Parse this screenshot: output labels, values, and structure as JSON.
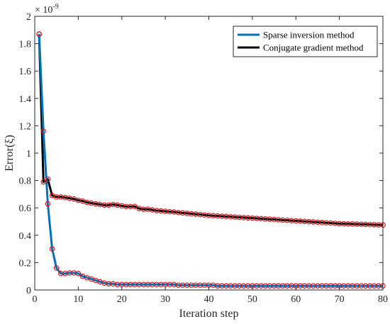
{
  "chart_data": {
    "type": "line",
    "xlabel": "Iteration step",
    "ylabel": "Error(ξ)",
    "y_exponent": "× 10",
    "y_exponent_power": "-9",
    "xlim": [
      0,
      80
    ],
    "ylim": [
      0,
      2
    ],
    "x_ticks": [
      "0",
      "10",
      "20",
      "30",
      "40",
      "50",
      "60",
      "70",
      "80"
    ],
    "y_ticks": [
      "0",
      "0.2",
      "0.4",
      "0.6",
      "0.8",
      "1",
      "1.2",
      "1.4",
      "1.6",
      "1.8",
      "2"
    ],
    "grid": false,
    "legend_position": "top-right",
    "marker_color": "#d7191c",
    "series": [
      {
        "name": "Sparse inversion method",
        "color": "#0072bd",
        "x": [
          1,
          2,
          3,
          4,
          5,
          6,
          7,
          8,
          9,
          10,
          11,
          12,
          13,
          14,
          15,
          16,
          17,
          18,
          19,
          20,
          21,
          22,
          23,
          24,
          25,
          26,
          27,
          28,
          29,
          30,
          31,
          32,
          33,
          34,
          35,
          36,
          37,
          38,
          39,
          40,
          41,
          42,
          43,
          44,
          45,
          46,
          47,
          48,
          49,
          50,
          51,
          52,
          53,
          54,
          55,
          56,
          57,
          58,
          59,
          60,
          61,
          62,
          63,
          64,
          65,
          66,
          67,
          68,
          69,
          70,
          71,
          72,
          73,
          74,
          75,
          76,
          77,
          78,
          79,
          80
        ],
        "values": [
          1.87,
          1.16,
          0.63,
          0.3,
          0.16,
          0.12,
          0.12,
          0.125,
          0.125,
          0.12,
          0.1,
          0.09,
          0.08,
          0.07,
          0.06,
          0.05,
          0.045,
          0.045,
          0.04,
          0.04,
          0.04,
          0.04,
          0.04,
          0.04,
          0.04,
          0.04,
          0.04,
          0.04,
          0.04,
          0.04,
          0.04,
          0.04,
          0.035,
          0.035,
          0.035,
          0.035,
          0.035,
          0.035,
          0.035,
          0.035,
          0.035,
          0.03,
          0.03,
          0.03,
          0.03,
          0.03,
          0.03,
          0.03,
          0.03,
          0.03,
          0.03,
          0.03,
          0.03,
          0.03,
          0.03,
          0.03,
          0.03,
          0.03,
          0.03,
          0.03,
          0.03,
          0.03,
          0.03,
          0.03,
          0.03,
          0.03,
          0.03,
          0.03,
          0.03,
          0.03,
          0.03,
          0.03,
          0.03,
          0.03,
          0.03,
          0.03,
          0.03,
          0.03,
          0.03,
          0.03
        ]
      },
      {
        "name": "Conjugate gradient method",
        "color": "#000000",
        "x": [
          1,
          2,
          3,
          4,
          5,
          6,
          7,
          8,
          9,
          10,
          11,
          12,
          13,
          14,
          15,
          16,
          17,
          18,
          19,
          20,
          21,
          22,
          23,
          24,
          25,
          26,
          27,
          28,
          29,
          30,
          31,
          32,
          33,
          34,
          35,
          36,
          37,
          38,
          39,
          40,
          41,
          42,
          43,
          44,
          45,
          46,
          47,
          48,
          49,
          50,
          51,
          52,
          53,
          54,
          55,
          56,
          57,
          58,
          59,
          60,
          61,
          62,
          63,
          64,
          65,
          66,
          67,
          68,
          69,
          70,
          71,
          72,
          73,
          74,
          75,
          76,
          77,
          78,
          79,
          80
        ],
        "values": [
          1.87,
          0.79,
          0.81,
          0.69,
          0.68,
          0.68,
          0.675,
          0.67,
          0.665,
          0.655,
          0.65,
          0.64,
          0.635,
          0.63,
          0.625,
          0.62,
          0.62,
          0.625,
          0.62,
          0.615,
          0.61,
          0.61,
          0.61,
          0.595,
          0.59,
          0.59,
          0.585,
          0.58,
          0.578,
          0.575,
          0.572,
          0.57,
          0.566,
          0.563,
          0.56,
          0.557,
          0.554,
          0.551,
          0.548,
          0.545,
          0.543,
          0.541,
          0.539,
          0.537,
          0.535,
          0.533,
          0.531,
          0.529,
          0.527,
          0.525,
          0.523,
          0.521,
          0.519,
          0.517,
          0.515,
          0.513,
          0.511,
          0.509,
          0.507,
          0.505,
          0.503,
          0.501,
          0.499,
          0.497,
          0.495,
          0.493,
          0.491,
          0.489,
          0.487,
          0.485,
          0.484,
          0.483,
          0.482,
          0.481,
          0.48,
          0.479,
          0.478,
          0.477,
          0.476,
          0.475
        ]
      }
    ]
  }
}
